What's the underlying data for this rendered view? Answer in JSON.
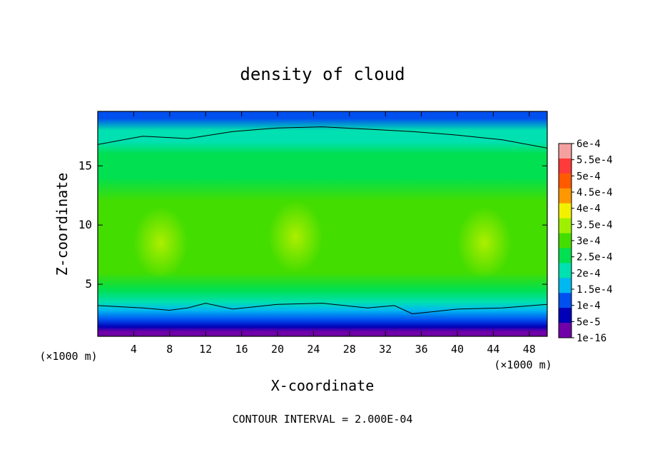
{
  "chart_data": {
    "type": "heatmap",
    "title": "density of cloud",
    "xlabel": "X-coordinate",
    "ylabel": "Z-coordinate",
    "x_unit": "(×1000 m)",
    "y_unit": "(×1000 m)",
    "xlim": [
      0,
      50
    ],
    "ylim": [
      0.6,
      19.6
    ],
    "x_ticks": [
      4,
      8,
      12,
      16,
      20,
      24,
      28,
      32,
      36,
      40,
      44,
      48
    ],
    "y_ticks": [
      5,
      10,
      15
    ],
    "footer": "CONTOUR INTERVAL = 2.000E-04",
    "colorbar": {
      "labels": [
        "6e-4",
        "5.5e-4",
        "5e-4",
        "4.5e-4",
        "4e-4",
        "3.5e-4",
        "3e-4",
        "2.5e-4",
        "2e-4",
        "1.5e-4",
        "1e-4",
        "5e-5",
        "1e-16"
      ],
      "colors": [
        "#f5a0a0",
        "#ff3a3a",
        "#ff5a00",
        "#ff9800",
        "#f2f200",
        "#9ef000",
        "#44dd00",
        "#00e050",
        "#00e0b0",
        "#00b8f0",
        "#0050f0",
        "#0000b8",
        "#7000a8"
      ]
    },
    "contour_levels": [
      0.0002
    ],
    "profile_z": [
      0.6,
      1.0,
      1.4,
      2.0,
      2.8,
      3.5,
      4.5,
      6,
      8,
      10,
      12,
      14,
      16,
      17,
      18,
      19,
      19.6
    ],
    "profile_density": [
      0.0,
      2e-05,
      5e-05,
      0.0001,
      0.00015,
      0.0002,
      0.00025,
      0.00029,
      0.00031,
      0.0003,
      0.00029,
      0.00027,
      0.00024,
      0.00022,
      0.00019,
      0.00012,
      8e-05
    ],
    "upper_contour_x": [
      0,
      5,
      10,
      15,
      20,
      25,
      30,
      35,
      40,
      45,
      50
    ],
    "upper_contour_z": [
      16.8,
      17.5,
      17.3,
      17.9,
      18.2,
      18.3,
      18.1,
      17.9,
      17.6,
      17.2,
      16.5
    ],
    "lower_contour_x": [
      0,
      5,
      8,
      10,
      12,
      15,
      20,
      25,
      30,
      33,
      35,
      40,
      45,
      50
    ],
    "lower_contour_z": [
      3.2,
      3.0,
      2.8,
      3.0,
      3.4,
      2.9,
      3.3,
      3.4,
      3.0,
      3.2,
      2.5,
      2.9,
      3.0,
      3.3
    ],
    "maxima": [
      {
        "x": 7,
        "z": 8.5,
        "value": 0.00033
      },
      {
        "x": 43,
        "z": 8.5,
        "value": 0.00036
      },
      {
        "x": 22,
        "z": 9,
        "value": 0.00031
      }
    ]
  }
}
